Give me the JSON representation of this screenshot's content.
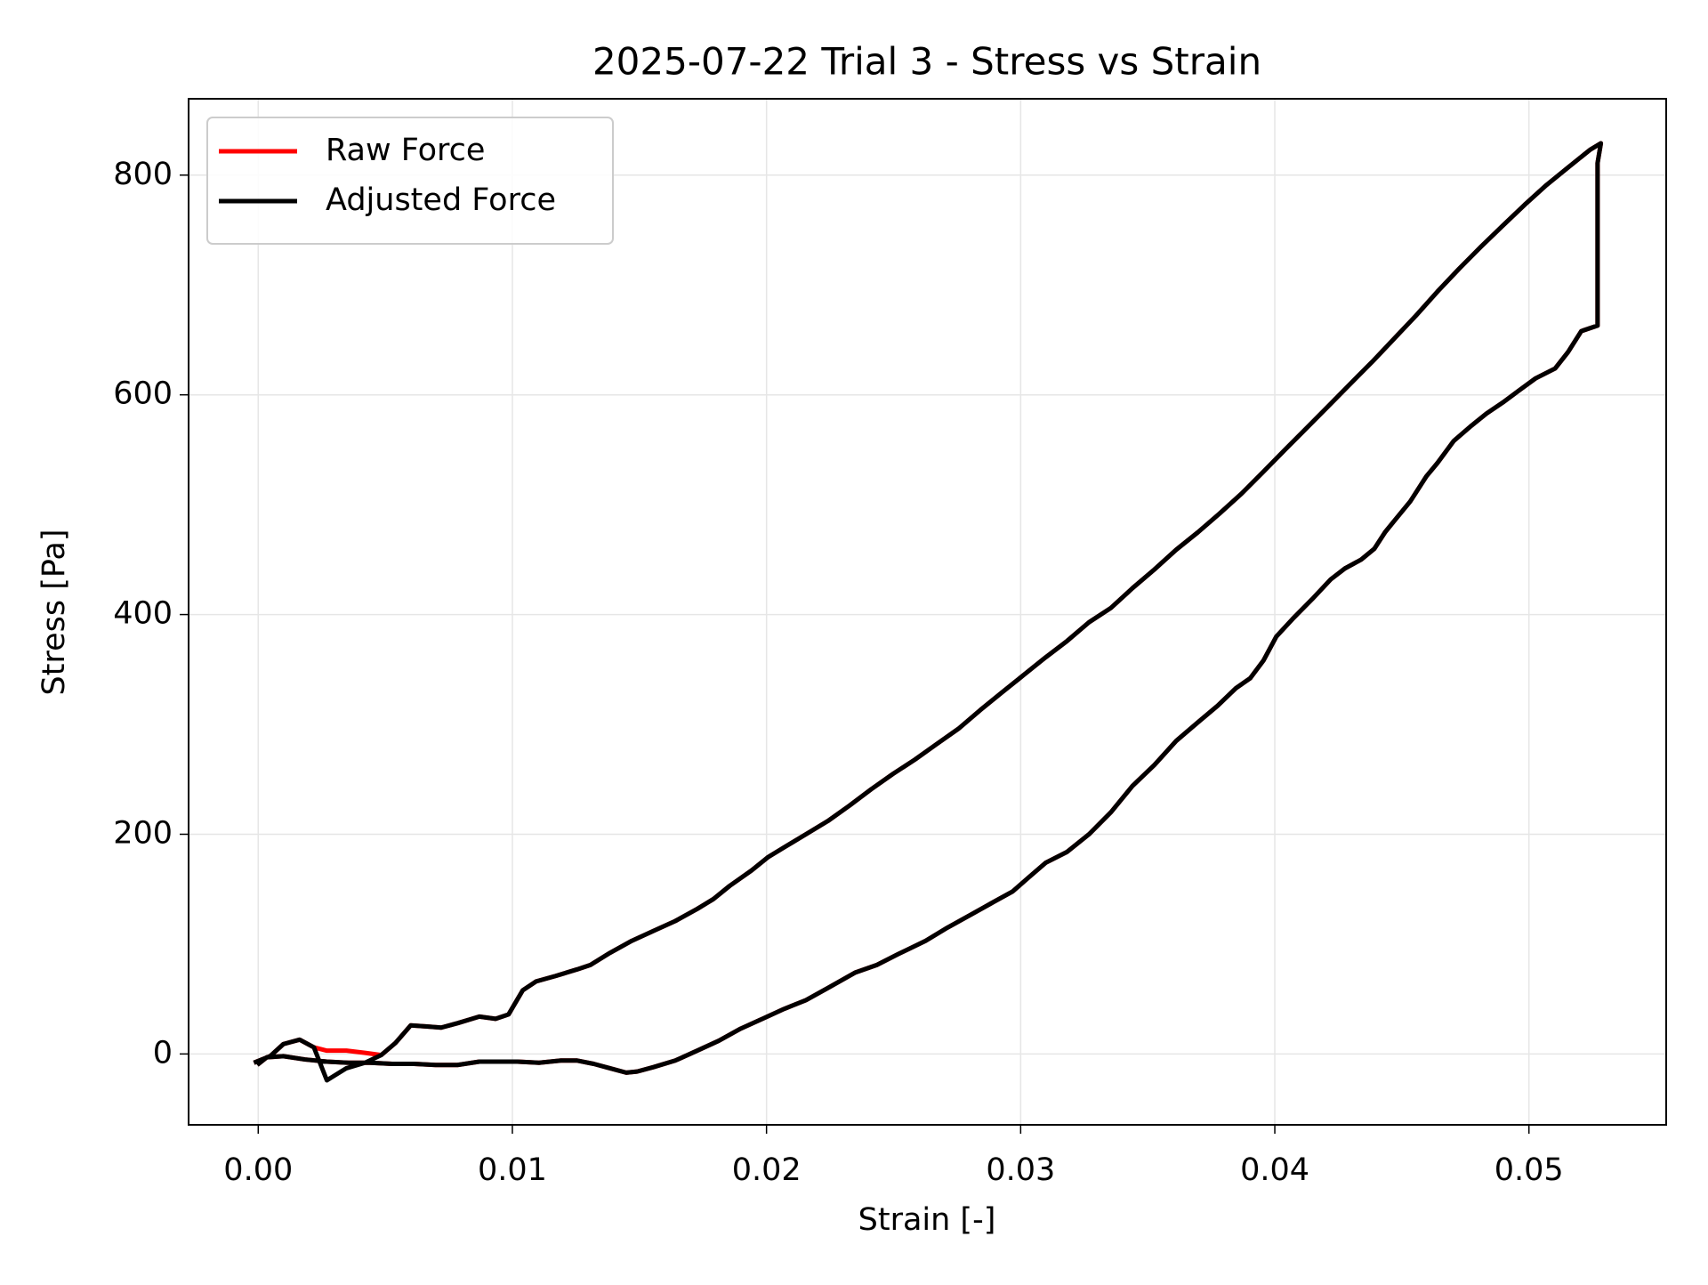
{
  "chart_data": {
    "type": "line",
    "title": "2025-07-22 Trial 3 - Stress vs Strain",
    "xlabel": "Strain [-]",
    "ylabel": "Stress [Pa]",
    "xlim": [
      -0.00274,
      0.0554
    ],
    "ylim": [
      -64.5,
      869.5
    ],
    "xticks": [
      {
        "value": 0,
        "label": "0.00"
      },
      0.01,
      0.02,
      0.03,
      0.04,
      0.05
    ],
    "yticks": [
      0,
      200,
      400,
      600,
      800
    ],
    "grid": true,
    "legend": "upper left",
    "x": [
      -0.00017,
      0.00047,
      0.00099,
      0.00163,
      0.00219,
      0.0027,
      0.00347,
      0.0042,
      0.00484,
      0.0054,
      0.006,
      0.00664,
      0.0072,
      0.00784,
      0.0087,
      0.00934,
      0.00985,
      0.01041,
      0.01093,
      0.0117,
      0.01255,
      0.01307,
      0.01384,
      0.0147,
      0.01555,
      0.01641,
      0.01727,
      0.01791,
      0.01855,
      0.01941,
      0.02005,
      0.02069,
      0.02155,
      0.02241,
      0.02326,
      0.02412,
      0.02498,
      0.02584,
      0.02669,
      0.02755,
      0.02841,
      0.02926,
      0.03012,
      0.03098,
      0.03183,
      0.03269,
      0.03355,
      0.0344,
      0.03526,
      0.03612,
      0.03698,
      0.03783,
      0.03869,
      0.03955,
      0.0404,
      0.04126,
      0.04212,
      0.04297,
      0.04383,
      0.04469,
      0.04555,
      0.0464,
      0.04726,
      0.04812,
      0.04897,
      0.04983,
      0.05069,
      0.05154,
      0.0524,
      0.05283,
      0.0527,
      0.0527,
      0.0527,
      0.05206,
      0.05154,
      0.05103,
      0.05026,
      0.04961,
      0.04897,
      0.04833,
      0.04769,
      0.04704,
      0.0464,
      0.04597,
      0.04533,
      0.04469,
      0.04434,
      0.04392,
      0.0434,
      0.04276,
      0.0422,
      0.04147,
      0.0407,
      0.04006,
      0.03955,
      0.03903,
      0.03847,
      0.03775,
      0.03698,
      0.03612,
      0.03526,
      0.0344,
      0.03355,
      0.03269,
      0.03183,
      0.03098,
      0.03033,
      0.02969,
      0.02883,
      0.02798,
      0.02712,
      0.02626,
      0.02519,
      0.02434,
      0.02348,
      0.02241,
      0.02155,
      0.02069,
      0.01984,
      0.01898,
      0.01812,
      0.01727,
      0.01641,
      0.01555,
      0.01491,
      0.01448,
      0.01384,
      0.0132,
      0.01255,
      0.01191,
      0.01105,
      0.0102,
      0.00934,
      0.0087,
      0.00784,
      0.00698,
      0.00613,
      0.00527,
      0.00441,
      0.00356,
      0.0027,
      0.00184,
      0.00099,
      0.00034,
      -4e-05
    ],
    "series": [
      {
        "name": "Raw Force",
        "color": "#ff0000",
        "values": [
          -8,
          -2,
          9,
          13,
          6,
          3,
          3,
          1,
          -1,
          10,
          26,
          25,
          24,
          28,
          34,
          32,
          36,
          58,
          66,
          71,
          77,
          81,
          92,
          103,
          112,
          121,
          132,
          141,
          153,
          167,
          179,
          188,
          200,
          212,
          226,
          241,
          255,
          268,
          282,
          296,
          313,
          329,
          345,
          361,
          376,
          393,
          406,
          424,
          441,
          459,
          475,
          492,
          510,
          530,
          550,
          570,
          590,
          610,
          630,
          651,
          672,
          694,
          715,
          735,
          754,
          773,
          791,
          807,
          823,
          829,
          811,
          761,
          663,
          658,
          639,
          624,
          615,
          604,
          593,
          583,
          571,
          558,
          538,
          526,
          503,
          485,
          475,
          460,
          450,
          442,
          432,
          414,
          396,
          380,
          358,
          342,
          333,
          317,
          302,
          285,
          263,
          244,
          220,
          200,
          184,
          174,
          161,
          148,
          137,
          126,
          115,
          103,
          91,
          81,
          74,
          60,
          49,
          41,
          32,
          23,
          12,
          3,
          -6,
          -12,
          -16,
          -17,
          -13,
          -9,
          -6,
          -6,
          -8,
          -7,
          -7,
          -7,
          -10,
          -10,
          -9,
          -9,
          -8,
          -8,
          -7,
          -5,
          -2,
          -3,
          -10
        ]
      },
      {
        "name": "Adjusted Force",
        "color": "#000000",
        "values": [
          -8,
          -2,
          9,
          13,
          6,
          -24,
          -13,
          -8,
          -1,
          10,
          26,
          25,
          24,
          28,
          34,
          32,
          36,
          58,
          66,
          71,
          77,
          81,
          92,
          103,
          112,
          121,
          132,
          141,
          153,
          167,
          179,
          188,
          200,
          212,
          226,
          241,
          255,
          268,
          282,
          296,
          313,
          329,
          345,
          361,
          376,
          393,
          406,
          424,
          441,
          459,
          475,
          492,
          510,
          530,
          550,
          570,
          590,
          610,
          630,
          651,
          672,
          694,
          715,
          735,
          754,
          773,
          791,
          807,
          823,
          829,
          811,
          761,
          663,
          658,
          639,
          624,
          615,
          604,
          593,
          583,
          571,
          558,
          538,
          526,
          503,
          485,
          475,
          460,
          450,
          442,
          432,
          414,
          396,
          380,
          358,
          342,
          333,
          317,
          302,
          285,
          263,
          244,
          220,
          200,
          184,
          174,
          161,
          148,
          137,
          126,
          115,
          103,
          91,
          81,
          74,
          60,
          49,
          41,
          32,
          23,
          12,
          3,
          -6,
          -12,
          -16,
          -17,
          -13,
          -9,
          -6,
          -6,
          -8,
          -7,
          -7,
          -7,
          -10,
          -10,
          -9,
          -9,
          -8,
          -8,
          -7,
          -5,
          -2,
          -3,
          -10
        ]
      }
    ]
  }
}
